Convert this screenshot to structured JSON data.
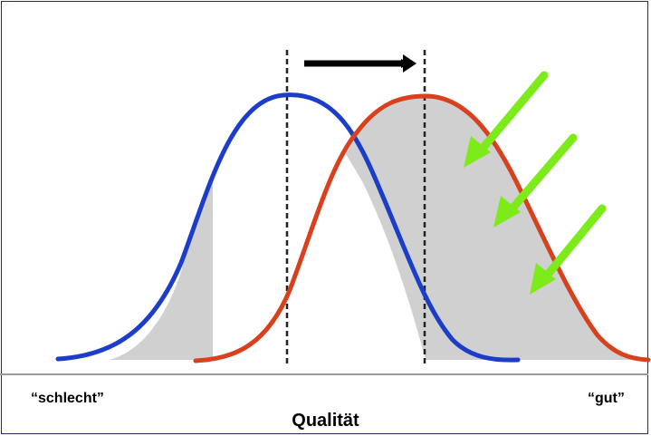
{
  "labels": {
    "bad": "“schlecht”",
    "good": "“gut”",
    "axis": "Qualität"
  },
  "colors": {
    "curve_before": "#1c3dc8",
    "curve_after": "#d8401e",
    "shade": "#d0d0d0",
    "arrows": "#7dea1a",
    "shift_arrow": "#000000",
    "mean_lines": "#222222",
    "frame": "#1f2d5c"
  },
  "icons": {
    "shift": "arrow-right-icon",
    "improvement": "arrow-down-left-icon"
  }
}
